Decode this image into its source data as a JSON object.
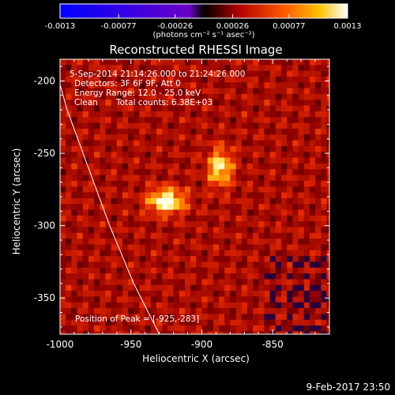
{
  "colorbar": {
    "tick_labels": [
      "-0.0013",
      "-0.00077",
      "-0.00026",
      "0.00026",
      "0.00077",
      "0.0013"
    ],
    "tick_values": [
      -0.0013,
      -0.00077,
      -0.00026,
      0.00026,
      0.00077,
      0.0013
    ],
    "range": [
      -0.0013,
      0.0013
    ],
    "units_label": "(photons cm⁻² s⁻¹ asec⁻²)"
  },
  "chart_data": {
    "type": "heatmap",
    "title": "Reconstructed RHESSI Image",
    "xlabel": "Heliocentric X (arcsec)",
    "ylabel": "Heliocentric Y (arcsec)",
    "xlim": [
      -1000,
      -810
    ],
    "ylim": [
      -375,
      -185
    ],
    "x_ticks": [
      -1000,
      -950,
      -900,
      -850
    ],
    "y_ticks": [
      -200,
      -250,
      -300,
      -350
    ],
    "x_tick_labels": [
      "-1000",
      "-950",
      "-900",
      "-850"
    ],
    "y_tick_labels": [
      "-200",
      "-250",
      "-300",
      "-350"
    ],
    "colormap": "red-temperature",
    "sources": [
      {
        "x": -925,
        "y": -283,
        "peak_fraction": 1.0
      },
      {
        "x": -887,
        "y": -260,
        "peak_fraction": 0.82
      }
    ],
    "annotations": [
      "5-Sep-2014 21:14:26.000 to 21:24:26.000",
      "Detectors: 3F 6F 9F, Att 0",
      "Energy Range: 12.0 - 25.0 keV",
      "Clean",
      "Total counts: 6.38E+03"
    ],
    "peak_label": "Position of Peak = [-925,-283]",
    "limb_curve": [
      [
        -1005,
        -185
      ],
      [
        -995,
        -220
      ],
      [
        -980,
        -260
      ],
      [
        -965,
        -300
      ],
      [
        -948,
        -340
      ],
      [
        -930,
        -375
      ]
    ]
  },
  "footer": {
    "date": "9-Feb-2017 23:50"
  },
  "colors": {
    "background": "#000000",
    "axis": "#ffffff"
  }
}
